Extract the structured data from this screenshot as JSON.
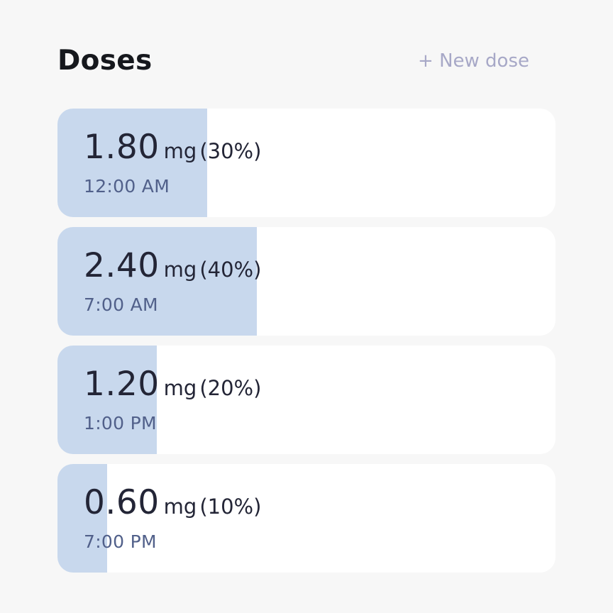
{
  "header": {
    "title": "Doses",
    "new_dose_label": "+ New dose"
  },
  "doses": [
    {
      "amount": "1.80",
      "unit": "mg",
      "percent_label": "(30%)",
      "time": "12:00 AM",
      "fill_fraction": 0.3
    },
    {
      "amount": "2.40",
      "unit": "mg",
      "percent_label": "(40%)",
      "time": "7:00 AM",
      "fill_fraction": 0.4
    },
    {
      "amount": "1.20",
      "unit": "mg",
      "percent_label": "(20%)",
      "time": "1:00 PM",
      "fill_fraction": 0.2
    },
    {
      "amount": "0.60",
      "unit": "mg",
      "percent_label": "(10%)",
      "time": "7:00 PM",
      "fill_fraction": 0.1
    }
  ],
  "colors": {
    "background": "#f7f7f7",
    "card": "#ffffff",
    "fill": "#c8d8ed",
    "title": "#16181d",
    "accent_link": "#a7a8c7",
    "amount_text": "#232536",
    "time_text": "#51608a"
  }
}
